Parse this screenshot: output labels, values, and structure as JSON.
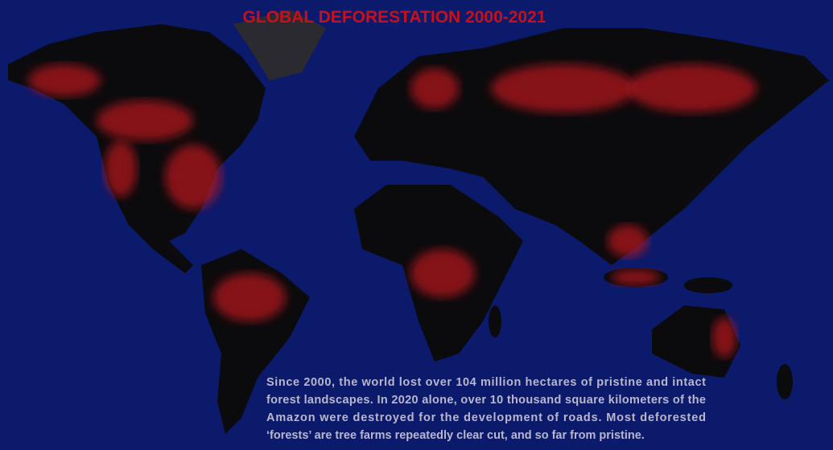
{
  "header": {
    "title": "GLOBAL DEFORESTATION 2000-2021"
  },
  "caption": {
    "lines": [
      "Since 2000, the world lost over 104 million hectares of pristine and intact",
      "forest landscapes. In 2020 alone, over 10 thousand square kilometers of the",
      "Amazon were destroyed for the development of roads. Most deforested",
      "‘forests’ are tree farms repeatedly clear cut, and so far from pristine."
    ]
  }
}
